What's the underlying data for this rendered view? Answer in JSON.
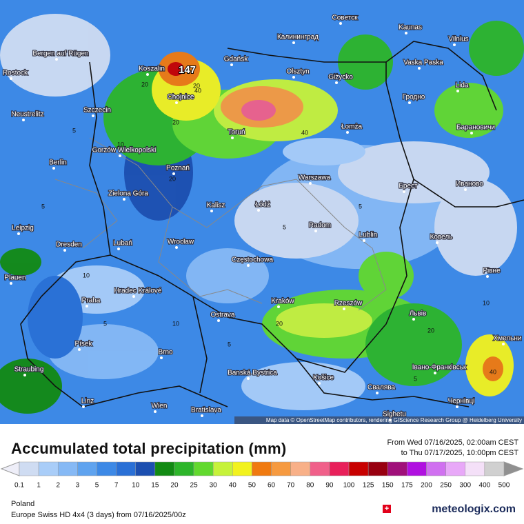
{
  "map": {
    "cities": [
      "Советск",
      "Kaunas",
      "Vilnius",
      "Калининград",
      "Bergen auf Rügen",
      "Rostock",
      "Koszalin",
      "Gdańsk",
      "Olsztyn",
      "Giżycko",
      "Vaska Paska",
      "Lida",
      "Гродно",
      "Neustrelitz",
      "Szczecin",
      "Chojnice",
      "Łomża",
      "Барановичи",
      "Gorzów Wielkopolski",
      "Toruń",
      "Berlin",
      "Poznań",
      "Warszawa",
      "Брест",
      "Иваново",
      "Zielona Góra",
      "Kalisz",
      "Łódź",
      "Leipzig",
      "Radom",
      "Lublin",
      "Ковель",
      "Dresden",
      "Lubań",
      "Wrocław",
      "Częstochowa",
      "Plauen",
      "Рівне",
      "Praha",
      "Hradec Králové",
      "Kraków",
      "Rzeszów",
      "Львів",
      "Ostrava",
      "Хмельни",
      "Písek",
      "Brno",
      "Straubing",
      "Banská Bystrica",
      "Košice",
      "Івано-Франківськ",
      "Свалява",
      "Linz",
      "Wien",
      "Bratislava",
      "Чернівці",
      "Sighetu"
    ],
    "contour_labels": [
      "5",
      "5",
      "10",
      "20",
      "20",
      "40",
      "40",
      "20",
      "5",
      "10",
      "5",
      "20",
      "5",
      "10",
      "20",
      "5",
      "10",
      "20",
      "5",
      "40"
    ],
    "max_label": "147",
    "attribution": "Map data © OpenStreetMap contributors, rendering GIScience Research Group @ Heidelberg University"
  },
  "header": {
    "title": "Accumulated total precipitation (mm)",
    "from": "From Wed 07/16/2025, 02:00am CEST",
    "to": "to Thu 07/17/2025, 10:00pm CEST"
  },
  "legend": {
    "ticks": [
      0.1,
      1,
      2,
      3,
      5,
      7,
      10,
      15,
      20,
      25,
      30,
      40,
      50,
      60,
      70,
      80,
      90,
      100,
      125,
      150,
      175,
      200,
      250,
      300,
      400,
      500
    ],
    "colors": [
      "#cfdcf2",
      "#a9cdf8",
      "#86b9f5",
      "#5fa3ef",
      "#3d89e6",
      "#2a70d6",
      "#1c4fb0",
      "#128a13",
      "#2db52a",
      "#62d92e",
      "#c6f23a",
      "#f2f21e",
      "#f07a10",
      "#f69a40",
      "#f8b088",
      "#f0608a",
      "#e8205a",
      "#c80000",
      "#980010",
      "#a0107a",
      "#b010e0",
      "#d070f0",
      "#e8a8f8",
      "#f4e0f8",
      "#d0d0d0"
    ],
    "under_color": "#eeeef8",
    "over_color": "#909090"
  },
  "footer": {
    "region": "Poland",
    "model": "Europe Swiss HD 4x4 (3 days) from 07/16/2025/00z",
    "brand": "meteologix.com"
  }
}
